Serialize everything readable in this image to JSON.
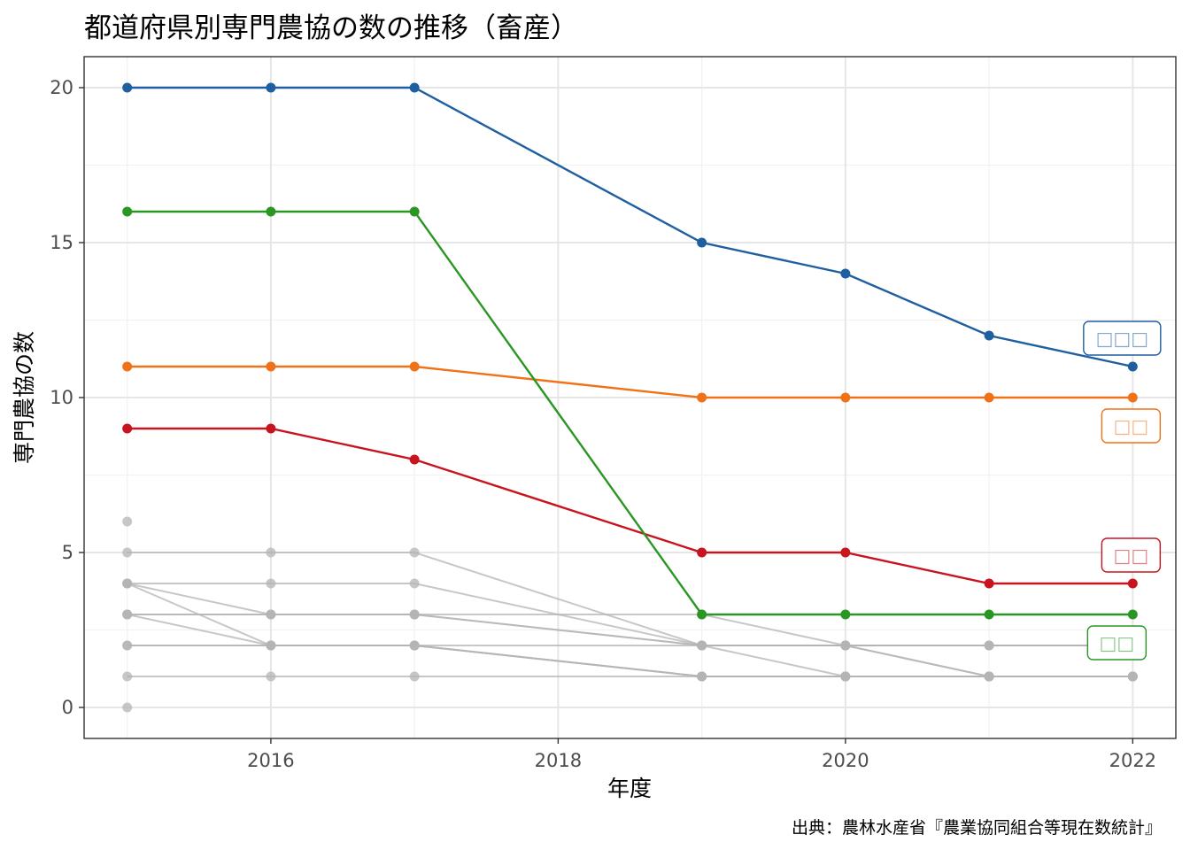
{
  "chart_data": {
    "type": "line",
    "title": "都道府県別専門農協の数の推移（畜産）",
    "xlabel": "年度",
    "ylabel": "専門農協の数",
    "caption": "出典：農林水産省『農業協同組合等現在数統計』",
    "x": [
      2015,
      2016,
      2017,
      2019,
      2020,
      2021,
      2022
    ],
    "xlim": [
      2014.7,
      2022.3
    ],
    "ylim": [
      -1,
      21
    ],
    "x_ticks": [
      "2016",
      "2018",
      "2020",
      "2022"
    ],
    "y_ticks": [
      "0",
      "5",
      "10",
      "15",
      "20"
    ],
    "grid": true,
    "legend": "none",
    "highlight_series": [
      {
        "color": "#1f5fa0",
        "values": [
          20,
          20,
          20,
          15,
          14,
          12,
          11
        ],
        "label": "□□□"
      },
      {
        "color": "#f07218",
        "values": [
          11,
          11,
          11,
          10,
          10,
          10,
          10
        ],
        "label": "□□"
      },
      {
        "color": "#c8141e",
        "values": [
          9,
          9,
          8,
          5,
          5,
          4,
          4
        ],
        "label": "□□"
      },
      {
        "color": "#2a9624",
        "values": [
          16,
          16,
          16,
          3,
          3,
          3,
          3
        ],
        "label": "□□"
      }
    ],
    "background_color": "#b4b4b4",
    "background_series": [
      {
        "values": [
          5,
          5,
          5,
          2,
          2,
          1,
          1
        ]
      },
      {
        "values": [
          4,
          4,
          4,
          2,
          1,
          1,
          1
        ]
      },
      {
        "values": [
          4,
          3,
          3,
          2,
          2,
          2,
          2
        ]
      },
      {
        "values": [
          4,
          2,
          2,
          1,
          1,
          1,
          1
        ]
      },
      {
        "values": [
          3,
          3,
          3,
          3,
          2,
          1,
          1
        ]
      },
      {
        "values": [
          3,
          3,
          3,
          2,
          2,
          2,
          2
        ]
      },
      {
        "values": [
          3,
          2,
          2,
          1,
          1,
          1,
          1
        ]
      },
      {
        "values": [
          2,
          2,
          2,
          2,
          2,
          2,
          2
        ]
      },
      {
        "values": [
          2,
          2,
          2,
          1,
          1,
          1,
          1
        ]
      },
      {
        "values": [
          1,
          1,
          1,
          1,
          1,
          1,
          1
        ]
      }
    ],
    "background_points": [
      {
        "x": 2015,
        "y": 6
      },
      {
        "x": 2015,
        "y": 0
      }
    ]
  }
}
